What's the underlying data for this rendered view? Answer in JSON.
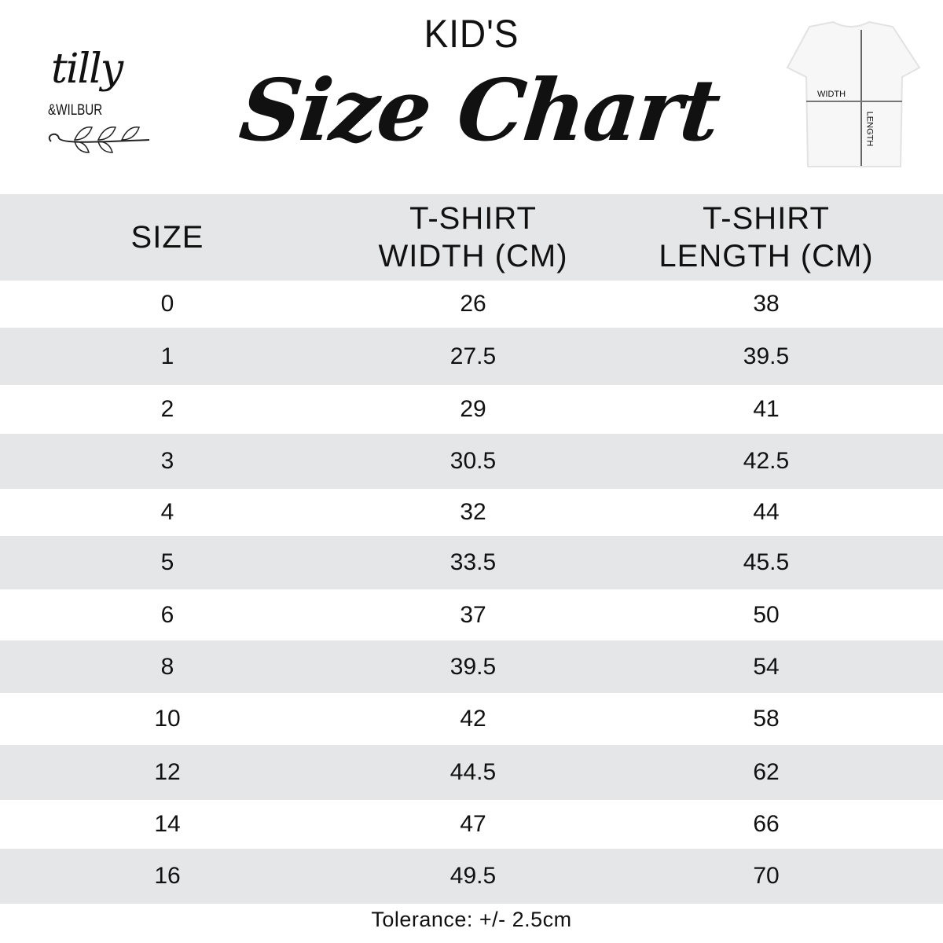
{
  "header": {
    "subtitle": "KID'S",
    "title": "Size Chart"
  },
  "logo": {
    "line1": "tilly",
    "line2": "&WILBUR"
  },
  "diagram": {
    "width_label": "WIDTH",
    "length_label": "LENGTH"
  },
  "table": {
    "columns": [
      "SIZE",
      "T-SHIRT WIDTH (CM)",
      "T-SHIRT LENGTH (CM)"
    ],
    "column_lines": [
      [
        "SIZE"
      ],
      [
        "T-SHIRT",
        "WIDTH (CM)"
      ],
      [
        "T-SHIRT",
        "LENGTH (CM)"
      ]
    ],
    "rows": [
      [
        "0",
        "26",
        "38"
      ],
      [
        "1",
        "27.5",
        "39.5"
      ],
      [
        "2",
        "29",
        "41"
      ],
      [
        "3",
        "30.5",
        "42.5"
      ],
      [
        "4",
        "32",
        "44"
      ],
      [
        "5",
        "33.5",
        "45.5"
      ],
      [
        "6",
        "37",
        "50"
      ],
      [
        "8",
        "39.5",
        "54"
      ],
      [
        "10",
        "42",
        "58"
      ],
      [
        "12",
        "44.5",
        "62"
      ],
      [
        "14",
        "47",
        "66"
      ],
      [
        "16",
        "49.5",
        "70"
      ]
    ]
  },
  "footer": {
    "tolerance": "Tolerance: +/- 2.5cm"
  },
  "colors": {
    "stripe": "#e5e6e8",
    "text": "#111111"
  }
}
